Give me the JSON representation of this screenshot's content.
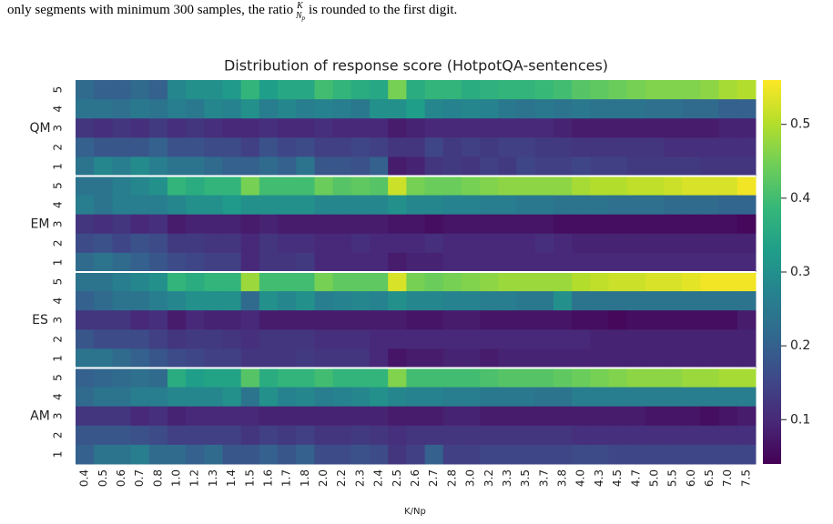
{
  "chart_data": {
    "type": "heatmap",
    "caption": {
      "before": "only segments with minimum 300 samples, the ratio",
      "num": "K",
      "den": "N",
      "den_sub": "p",
      "after": "is rounded to the first digit."
    },
    "title": "Distribution of response score (HotpotQA-sentences)",
    "xlabel": "K/Np",
    "colormap": "viridis",
    "categories": [
      "0.4",
      "0.5",
      "0.6",
      "0.7",
      "0.8",
      "1.0",
      "1.2",
      "1.3",
      "1.4",
      "1.5",
      "1.6",
      "1.7",
      "1.8",
      "2.0",
      "2.2",
      "2.3",
      "2.4",
      "2.5",
      "2.6",
      "2.7",
      "2.8",
      "3.0",
      "3.2",
      "3.3",
      "3.5",
      "3.7",
      "3.8",
      "4.0",
      "4.3",
      "4.5",
      "4.7",
      "5.0",
      "5.5",
      "6.0",
      "6.5",
      "7.0",
      "7.5"
    ],
    "groups": [
      {
        "name": "QM",
        "rows": [
          {
            "label": "5",
            "values": [
              0.22,
              0.2,
              0.2,
              0.22,
              0.2,
              0.28,
              0.3,
              0.3,
              0.32,
              0.38,
              0.33,
              0.35,
              0.35,
              0.4,
              0.38,
              0.36,
              0.35,
              0.45,
              0.36,
              0.38,
              0.38,
              0.36,
              0.37,
              0.38,
              0.38,
              0.39,
              0.4,
              0.42,
              0.43,
              0.44,
              0.45,
              0.46,
              0.46,
              0.46,
              0.47,
              0.49,
              0.5
            ]
          },
          {
            "label": "4",
            "values": [
              0.24,
              0.24,
              0.23,
              0.25,
              0.24,
              0.26,
              0.25,
              0.28,
              0.27,
              0.3,
              0.26,
              0.28,
              0.26,
              0.27,
              0.26,
              0.25,
              0.3,
              0.3,
              0.33,
              0.28,
              0.27,
              0.28,
              0.27,
              0.25,
              0.24,
              0.25,
              0.24,
              0.25,
              0.24,
              0.24,
              0.24,
              0.23,
              0.23,
              0.22,
              0.22,
              0.2,
              0.2
            ]
          },
          {
            "label": "3",
            "values": [
              0.12,
              0.11,
              0.12,
              0.11,
              0.13,
              0.11,
              0.12,
              0.11,
              0.1,
              0.1,
              0.11,
              0.1,
              0.1,
              0.11,
              0.1,
              0.1,
              0.1,
              0.08,
              0.09,
              0.1,
              0.1,
              0.1,
              0.1,
              0.1,
              0.1,
              0.1,
              0.09,
              0.08,
              0.08,
              0.08,
              0.08,
              0.08,
              0.08,
              0.08,
              0.08,
              0.09,
              0.09
            ]
          },
          {
            "label": "2",
            "values": [
              0.2,
              0.18,
              0.18,
              0.18,
              0.2,
              0.17,
              0.17,
              0.16,
              0.16,
              0.14,
              0.17,
              0.15,
              0.16,
              0.14,
              0.14,
              0.15,
              0.14,
              0.12,
              0.12,
              0.15,
              0.13,
              0.14,
              0.13,
              0.14,
              0.14,
              0.13,
              0.13,
              0.12,
              0.12,
              0.12,
              0.12,
              0.12,
              0.11,
              0.11,
              0.11,
              0.11,
              0.11
            ]
          },
          {
            "label": "1",
            "values": [
              0.24,
              0.28,
              0.26,
              0.29,
              0.26,
              0.24,
              0.24,
              0.22,
              0.2,
              0.2,
              0.22,
              0.2,
              0.24,
              0.18,
              0.18,
              0.17,
              0.2,
              0.08,
              0.09,
              0.12,
              0.13,
              0.12,
              0.14,
              0.13,
              0.15,
              0.14,
              0.14,
              0.15,
              0.14,
              0.14,
              0.13,
              0.13,
              0.13,
              0.13,
              0.12,
              0.12,
              0.12
            ]
          }
        ]
      },
      {
        "name": "EM",
        "rows": [
          {
            "label": "5",
            "values": [
              0.24,
              0.24,
              0.26,
              0.28,
              0.3,
              0.38,
              0.36,
              0.38,
              0.38,
              0.45,
              0.4,
              0.4,
              0.4,
              0.44,
              0.42,
              0.43,
              0.42,
              0.52,
              0.45,
              0.44,
              0.44,
              0.45,
              0.46,
              0.47,
              0.47,
              0.47,
              0.47,
              0.49,
              0.5,
              0.5,
              0.51,
              0.51,
              0.52,
              0.53,
              0.53,
              0.53,
              0.55
            ]
          },
          {
            "label": "4",
            "values": [
              0.26,
              0.24,
              0.26,
              0.26,
              0.26,
              0.28,
              0.3,
              0.3,
              0.32,
              0.3,
              0.3,
              0.3,
              0.3,
              0.28,
              0.28,
              0.28,
              0.28,
              0.3,
              0.28,
              0.28,
              0.27,
              0.27,
              0.26,
              0.26,
              0.25,
              0.25,
              0.24,
              0.24,
              0.24,
              0.23,
              0.23,
              0.23,
              0.22,
              0.22,
              0.22,
              0.21,
              0.21
            ]
          },
          {
            "label": "3",
            "values": [
              0.12,
              0.11,
              0.12,
              0.1,
              0.11,
              0.08,
              0.09,
              0.09,
              0.09,
              0.08,
              0.09,
              0.08,
              0.08,
              0.08,
              0.08,
              0.08,
              0.08,
              0.07,
              0.07,
              0.06,
              0.07,
              0.07,
              0.07,
              0.07,
              0.07,
              0.07,
              0.06,
              0.06,
              0.06,
              0.06,
              0.06,
              0.06,
              0.06,
              0.06,
              0.06,
              0.06,
              0.05
            ]
          },
          {
            "label": "2",
            "values": [
              0.16,
              0.17,
              0.15,
              0.17,
              0.16,
              0.13,
              0.13,
              0.12,
              0.12,
              0.1,
              0.12,
              0.11,
              0.11,
              0.1,
              0.1,
              0.11,
              0.1,
              0.1,
              0.1,
              0.11,
              0.1,
              0.1,
              0.1,
              0.1,
              0.1,
              0.11,
              0.1,
              0.09,
              0.09,
              0.09,
              0.09,
              0.09,
              0.09,
              0.09,
              0.09,
              0.09,
              0.09
            ]
          },
          {
            "label": "1",
            "values": [
              0.22,
              0.24,
              0.22,
              0.2,
              0.18,
              0.16,
              0.15,
              0.14,
              0.14,
              0.1,
              0.12,
              0.12,
              0.13,
              0.1,
              0.1,
              0.1,
              0.1,
              0.08,
              0.09,
              0.09,
              0.1,
              0.1,
              0.1,
              0.1,
              0.1,
              0.1,
              0.1,
              0.1,
              0.1,
              0.1,
              0.1,
              0.1,
              0.1,
              0.1,
              0.1,
              0.1,
              0.1
            ]
          }
        ]
      },
      {
        "name": "ES",
        "rows": [
          {
            "label": "5",
            "values": [
              0.24,
              0.24,
              0.26,
              0.28,
              0.3,
              0.38,
              0.36,
              0.38,
              0.38,
              0.48,
              0.4,
              0.4,
              0.4,
              0.45,
              0.43,
              0.43,
              0.43,
              0.53,
              0.45,
              0.44,
              0.45,
              0.46,
              0.47,
              0.48,
              0.48,
              0.48,
              0.48,
              0.5,
              0.51,
              0.52,
              0.52,
              0.53,
              0.53,
              0.54,
              0.55,
              0.55,
              0.55
            ]
          },
          {
            "label": "4",
            "values": [
              0.2,
              0.22,
              0.24,
              0.24,
              0.26,
              0.28,
              0.3,
              0.3,
              0.3,
              0.22,
              0.3,
              0.28,
              0.3,
              0.26,
              0.27,
              0.28,
              0.27,
              0.3,
              0.28,
              0.28,
              0.27,
              0.27,
              0.26,
              0.26,
              0.25,
              0.25,
              0.3,
              0.24,
              0.24,
              0.24,
              0.24,
              0.24,
              0.24,
              0.24,
              0.24,
              0.24,
              0.24
            ]
          },
          {
            "label": "3",
            "values": [
              0.12,
              0.12,
              0.12,
              0.1,
              0.11,
              0.08,
              0.1,
              0.09,
              0.09,
              0.1,
              0.08,
              0.08,
              0.08,
              0.08,
              0.08,
              0.08,
              0.08,
              0.08,
              0.07,
              0.07,
              0.08,
              0.08,
              0.07,
              0.07,
              0.07,
              0.07,
              0.07,
              0.06,
              0.06,
              0.05,
              0.06,
              0.06,
              0.06,
              0.06,
              0.06,
              0.06,
              0.08
            ]
          },
          {
            "label": "2",
            "values": [
              0.18,
              0.16,
              0.16,
              0.16,
              0.14,
              0.12,
              0.13,
              0.13,
              0.12,
              0.11,
              0.12,
              0.12,
              0.12,
              0.11,
              0.11,
              0.11,
              0.1,
              0.1,
              0.1,
              0.1,
              0.1,
              0.1,
              0.1,
              0.1,
              0.1,
              0.1,
              0.1,
              0.1,
              0.09,
              0.09,
              0.09,
              0.09,
              0.09,
              0.09,
              0.09,
              0.09,
              0.09
            ]
          },
          {
            "label": "1",
            "values": [
              0.24,
              0.24,
              0.22,
              0.2,
              0.18,
              0.16,
              0.15,
              0.14,
              0.14,
              0.12,
              0.12,
              0.12,
              0.13,
              0.12,
              0.12,
              0.12,
              0.1,
              0.07,
              0.08,
              0.08,
              0.09,
              0.09,
              0.08,
              0.09,
              0.09,
              0.09,
              0.09,
              0.09,
              0.09,
              0.09,
              0.09,
              0.09,
              0.09,
              0.09,
              0.09,
              0.09,
              0.09
            ]
          }
        ]
      },
      {
        "name": "AM",
        "rows": [
          {
            "label": "5",
            "values": [
              0.2,
              0.21,
              0.22,
              0.23,
              0.22,
              0.36,
              0.33,
              0.34,
              0.34,
              0.42,
              0.36,
              0.38,
              0.38,
              0.4,
              0.38,
              0.38,
              0.38,
              0.46,
              0.4,
              0.4,
              0.4,
              0.4,
              0.41,
              0.42,
              0.42,
              0.42,
              0.43,
              0.44,
              0.45,
              0.46,
              0.47,
              0.47,
              0.47,
              0.48,
              0.48,
              0.49,
              0.49
            ]
          },
          {
            "label": "4",
            "values": [
              0.22,
              0.24,
              0.24,
              0.26,
              0.26,
              0.28,
              0.28,
              0.28,
              0.3,
              0.24,
              0.3,
              0.27,
              0.28,
              0.26,
              0.27,
              0.28,
              0.3,
              0.28,
              0.27,
              0.27,
              0.26,
              0.26,
              0.25,
              0.25,
              0.25,
              0.24,
              0.24,
              0.26,
              0.26,
              0.26,
              0.26,
              0.26,
              0.26,
              0.26,
              0.26,
              0.26,
              0.26
            ]
          },
          {
            "label": "3",
            "values": [
              0.12,
              0.12,
              0.12,
              0.1,
              0.11,
              0.09,
              0.1,
              0.1,
              0.1,
              0.1,
              0.09,
              0.09,
              0.09,
              0.09,
              0.09,
              0.09,
              0.09,
              0.08,
              0.08,
              0.08,
              0.09,
              0.09,
              0.08,
              0.08,
              0.08,
              0.08,
              0.08,
              0.08,
              0.08,
              0.08,
              0.08,
              0.07,
              0.07,
              0.07,
              0.06,
              0.07,
              0.08
            ]
          },
          {
            "label": "2",
            "values": [
              0.18,
              0.18,
              0.18,
              0.17,
              0.16,
              0.14,
              0.14,
              0.14,
              0.14,
              0.12,
              0.14,
              0.13,
              0.14,
              0.12,
              0.12,
              0.13,
              0.12,
              0.11,
              0.12,
              0.12,
              0.12,
              0.12,
              0.12,
              0.12,
              0.12,
              0.12,
              0.12,
              0.11,
              0.11,
              0.11,
              0.11,
              0.11,
              0.11,
              0.11,
              0.11,
              0.11,
              0.11
            ]
          },
          {
            "label": "1",
            "values": [
              0.2,
              0.24,
              0.24,
              0.26,
              0.22,
              0.22,
              0.2,
              0.22,
              0.18,
              0.18,
              0.2,
              0.18,
              0.2,
              0.16,
              0.16,
              0.17,
              0.16,
              0.12,
              0.14,
              0.2,
              0.14,
              0.14,
              0.15,
              0.15,
              0.15,
              0.15,
              0.15,
              0.16,
              0.16,
              0.15,
              0.15,
              0.15,
              0.15,
              0.15,
              0.15,
              0.15,
              0.15
            ]
          }
        ]
      }
    ],
    "clim": [
      0.04,
      0.56
    ],
    "cticks": [
      0.1,
      0.2,
      0.3,
      0.4,
      0.5
    ]
  }
}
